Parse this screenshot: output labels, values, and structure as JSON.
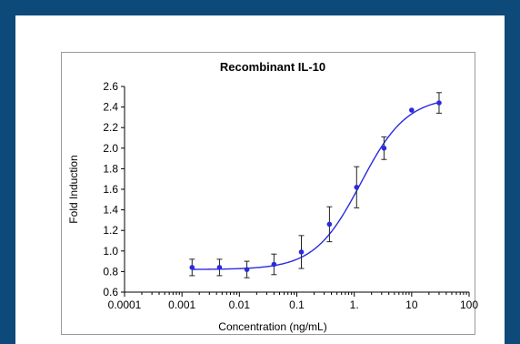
{
  "chart_data": {
    "type": "scatter",
    "title": "Recombinant IL-10",
    "xlabel": "Concentration (ng/mL)",
    "ylabel": "Fold Induction",
    "x_scale": "log",
    "xlim": [
      0.0001,
      100
    ],
    "ylim": [
      0.6,
      2.6
    ],
    "x_ticks": [
      "0.0001",
      "0.001",
      "0.01",
      "0.1",
      "1.",
      "10",
      "100"
    ],
    "x_tick_values": [
      0.0001,
      0.001,
      0.01,
      0.1,
      1,
      10,
      100
    ],
    "y_ticks": [
      "0.6",
      "0.8",
      "1.0",
      "1.2",
      "1.4",
      "1.6",
      "1.8",
      "2.0",
      "2.2",
      "2.4",
      "2.6"
    ],
    "y_tick_values": [
      0.6,
      0.8,
      1.0,
      1.2,
      1.4,
      1.6,
      1.8,
      2.0,
      2.2,
      2.4,
      2.6
    ],
    "grid": false,
    "colors": {
      "series": "#2a2ae0",
      "errorbar": "#222222",
      "axis": "#000000"
    },
    "series": [
      {
        "points": [
          {
            "x": 0.0015,
            "y": 0.84,
            "err": 0.08
          },
          {
            "x": 0.0045,
            "y": 0.84,
            "err": 0.08
          },
          {
            "x": 0.0135,
            "y": 0.82,
            "err": 0.08
          },
          {
            "x": 0.04,
            "y": 0.87,
            "err": 0.1
          },
          {
            "x": 0.12,
            "y": 0.99,
            "err": 0.16
          },
          {
            "x": 0.37,
            "y": 1.26,
            "err": 0.17
          },
          {
            "x": 1.1,
            "y": 1.62,
            "err": 0.2
          },
          {
            "x": 3.3,
            "y": 2.0,
            "err": 0.11
          },
          {
            "x": 10,
            "y": 2.37,
            "err": 0
          },
          {
            "x": 30,
            "y": 2.44,
            "err": 0.1
          }
        ]
      }
    ]
  }
}
